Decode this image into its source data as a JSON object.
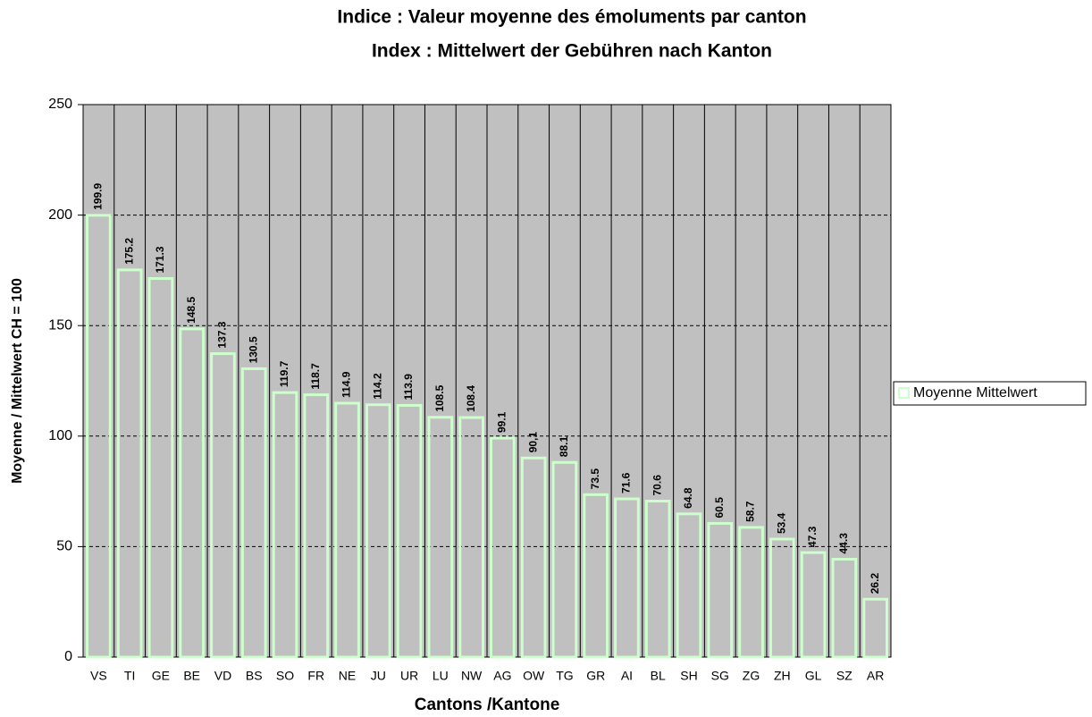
{
  "chart_data": {
    "type": "bar",
    "title": "Indice : Valeur moyenne des émoluments par canton",
    "subtitle": "Index : Mittelwert der Gebühren nach Kanton",
    "x_label": "Cantons /Kantone",
    "y_label": "Moyenne / Mittelwert CH = 100",
    "categories": [
      "VS",
      "TI",
      "GE",
      "BE",
      "VD",
      "BS",
      "SO",
      "FR",
      "NE",
      "JU",
      "UR",
      "LU",
      "NW",
      "AG",
      "OW",
      "TG",
      "GR",
      "AI",
      "BL",
      "SH",
      "SG",
      "ZG",
      "ZH",
      "GL",
      "SZ",
      "AR"
    ],
    "series": [
      {
        "name": "Moyenne Mittelwert",
        "color": "#ccffcc",
        "values": [
          199.9,
          175.2,
          171.3,
          148.5,
          137.3,
          130.5,
          119.7,
          118.7,
          114.9,
          114.2,
          113.9,
          108.5,
          108.4,
          99.1,
          90.1,
          88.1,
          73.5,
          71.6,
          70.6,
          64.8,
          60.5,
          58.7,
          53.4,
          47.3,
          44.3,
          26.2
        ],
        "value_labels": [
          "199.9",
          "175.2",
          "171.3",
          "148.5",
          "137.3",
          "130.5",
          "119.7",
          "118.7",
          "114.9",
          "114.2",
          "113.9",
          "108.5",
          "108.4",
          "99.1",
          "90,1",
          "88.1",
          "73.5",
          "71.6",
          "70.6",
          "64.8",
          "60.5",
          "58.7",
          "53.4",
          "47.3",
          "44.3",
          "26.2"
        ]
      }
    ],
    "ylim": [
      0,
      250
    ],
    "yticks": [
      0,
      50,
      100,
      150,
      200,
      250
    ],
    "grid": true,
    "legend": "right"
  }
}
